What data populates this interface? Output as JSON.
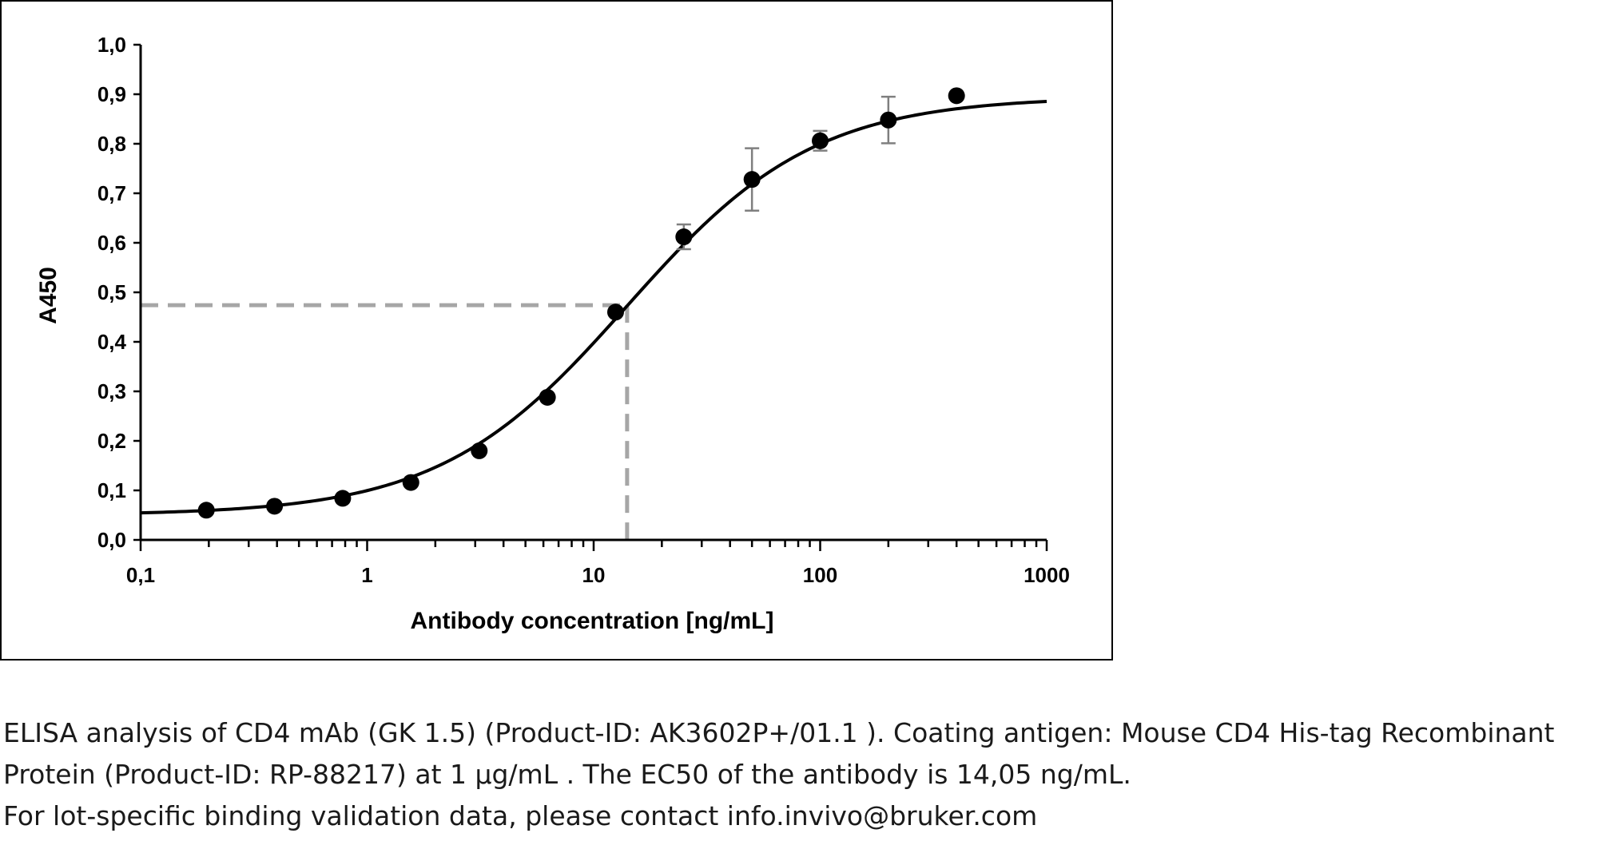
{
  "chart_data": {
    "type": "scatter",
    "x_scale": "log",
    "xlabel": "Antibody concentration [ng/mL]",
    "ylabel": "A450",
    "xlim": [
      0.1,
      1000
    ],
    "ylim": [
      0.0,
      1.0
    ],
    "x_ticks": [
      0.1,
      1,
      10,
      100,
      1000
    ],
    "x_tick_labels": [
      "0,1",
      "1",
      "10",
      "100",
      "1000"
    ],
    "y_ticks": [
      0.0,
      0.1,
      0.2,
      0.3,
      0.4,
      0.5,
      0.6,
      0.7,
      0.8,
      0.9,
      1.0
    ],
    "y_tick_labels": [
      "0,0",
      "0,1",
      "0,2",
      "0,3",
      "0,4",
      "0,5",
      "0,6",
      "0,7",
      "0,8",
      "0,9",
      "1,0"
    ],
    "grid": false,
    "legend": "none",
    "points": [
      {
        "x": 0.195,
        "y": 0.06,
        "err": 0.0
      },
      {
        "x": 0.39,
        "y": 0.068,
        "err": 0.0
      },
      {
        "x": 0.78,
        "y": 0.084,
        "err": 0.0
      },
      {
        "x": 1.56,
        "y": 0.116,
        "err": 0.0
      },
      {
        "x": 3.125,
        "y": 0.18,
        "err": 0.0
      },
      {
        "x": 6.25,
        "y": 0.288,
        "err": 0.0
      },
      {
        "x": 12.5,
        "y": 0.46,
        "err": 0.0
      },
      {
        "x": 25,
        "y": 0.612,
        "err": 0.025
      },
      {
        "x": 50,
        "y": 0.728,
        "err": 0.063
      },
      {
        "x": 100,
        "y": 0.806,
        "err": 0.02
      },
      {
        "x": 200,
        "y": 0.848,
        "err": 0.047
      },
      {
        "x": 400,
        "y": 0.897,
        "err": 0.0
      }
    ],
    "fit_curve": {
      "bottom": 0.05,
      "top": 0.895,
      "ec50": 14.05,
      "hill": 1.05
    },
    "ec50_marker": {
      "x": 14.05,
      "y": 0.474
    },
    "colors": {
      "points": "#000000",
      "curve": "#000000",
      "error_bars": "#7f7f7f",
      "ec50_guides": "#a6a6a6"
    }
  },
  "caption": {
    "line1": "ELISA analysis of CD4 mAb (GK 1.5) (Product-ID: AK3602P+/01.1 ). Coating antigen: Mouse CD4 His-tag Recombinant",
    "line2": "Protein (Product-ID: RP-88217) at 1 µg/mL . The EC50 of the antibody is 14,05 ng/mL.",
    "line3": "For lot-specific binding validation data, please contact info.invivo@bruker.com"
  }
}
